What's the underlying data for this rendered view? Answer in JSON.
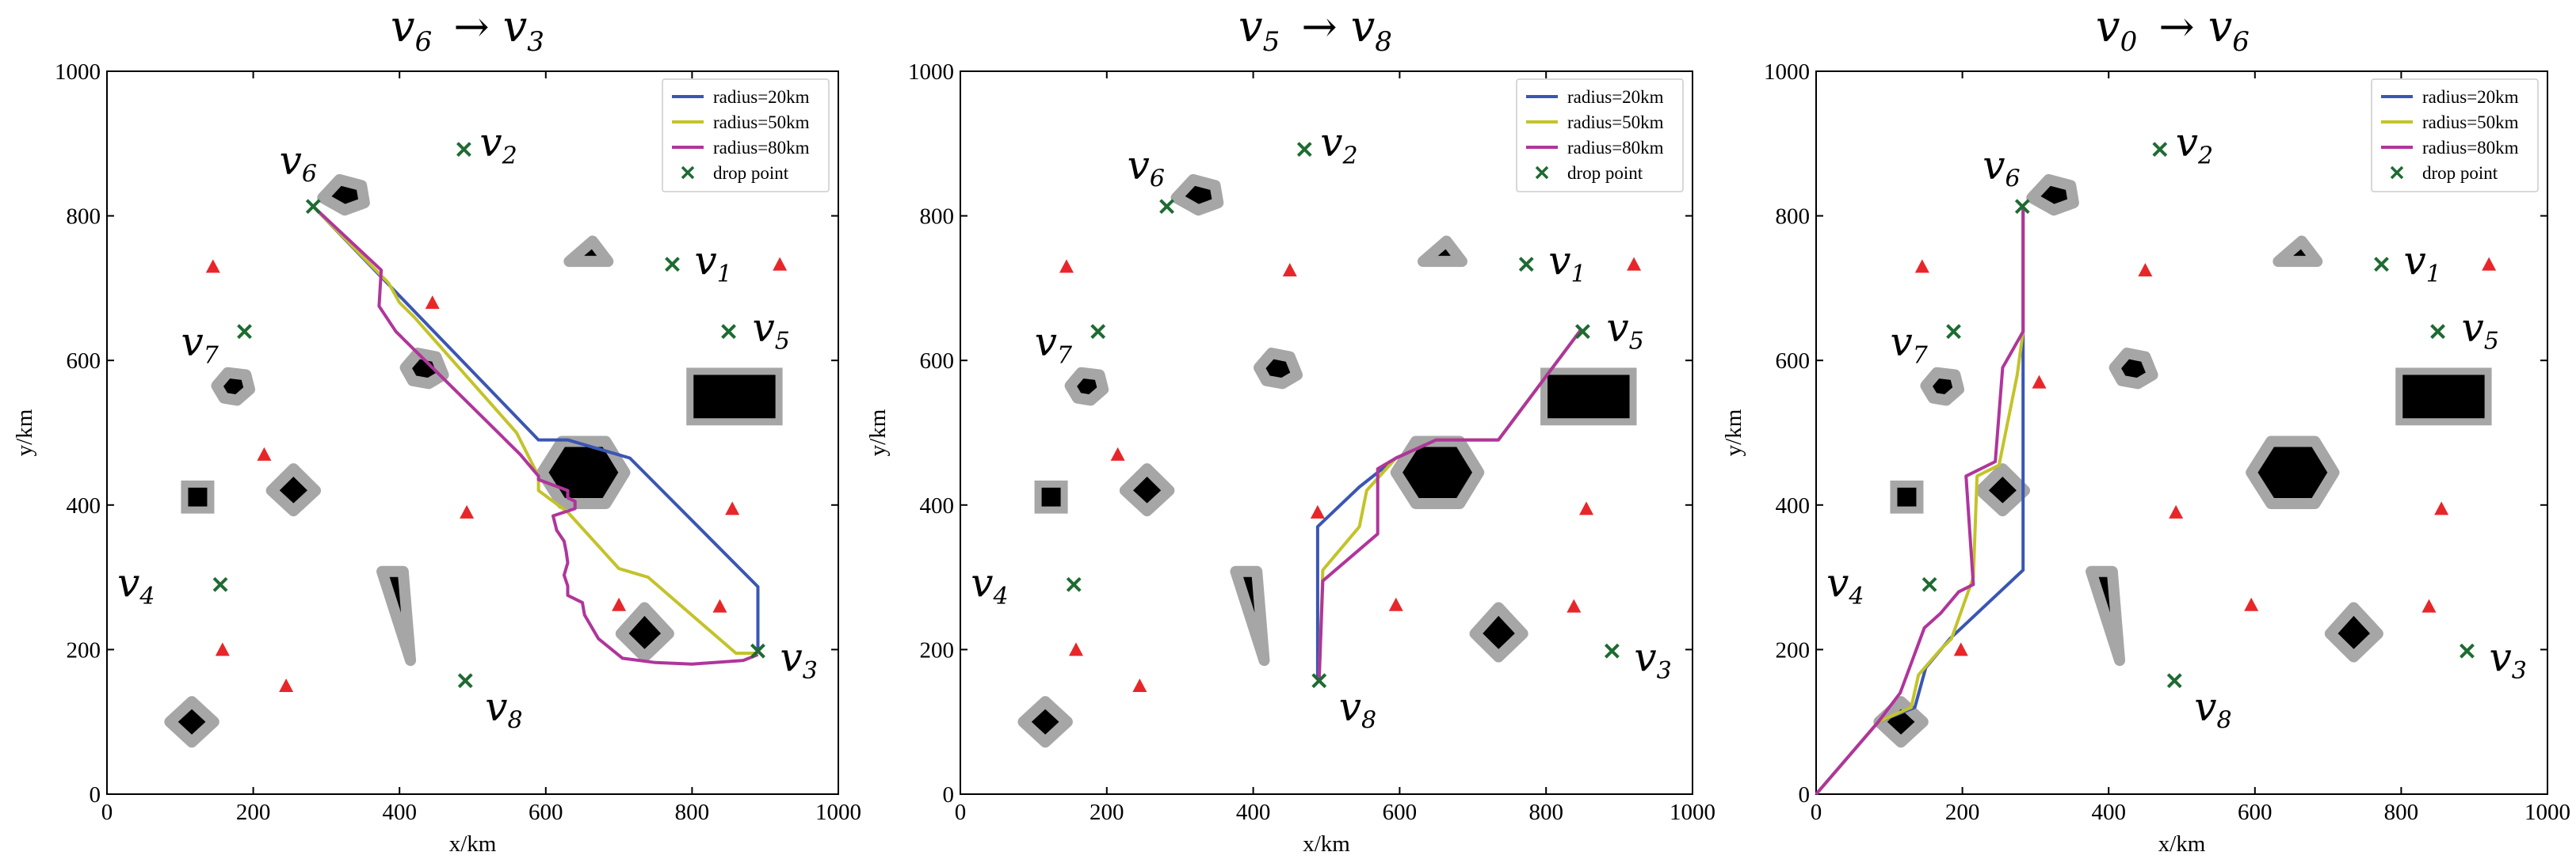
{
  "chart_data": [
    {
      "type": "line",
      "title": {
        "from": "v",
        "from_sub": "6",
        "arrow": "→",
        "to": "v",
        "to_sub": "3"
      },
      "xlabel": "x/km",
      "ylabel": "y/km",
      "xlim": [
        0,
        1000
      ],
      "ylim": [
        0,
        1000
      ],
      "xticks": [
        0,
        200,
        400,
        600,
        800,
        1000
      ],
      "yticks": [
        0,
        200,
        400,
        600,
        800,
        1000
      ],
      "legend": {
        "position": "top-right",
        "entries": [
          "radius=20km",
          "radius=50km",
          "radius=80km",
          "drop point"
        ]
      },
      "series": [
        {
          "name": "radius=20km",
          "color": "#3a56b4",
          "points": [
            [
              283,
              812
            ],
            [
              590,
              490
            ],
            [
              630,
              490
            ],
            [
              715,
              465
            ],
            [
              890,
              287
            ],
            [
              890,
              198
            ]
          ]
        },
        {
          "name": "radius=50km",
          "color": "#c3c32a",
          "points": [
            [
              283,
              812
            ],
            [
              385,
              707
            ],
            [
              400,
              680
            ],
            [
              420,
              660
            ],
            [
              560,
              500
            ],
            [
              590,
              440
            ],
            [
              590,
              420
            ],
            [
              630,
              390
            ],
            [
              700,
              312
            ],
            [
              740,
              300
            ],
            [
              860,
              195
            ],
            [
              890,
              195
            ]
          ]
        },
        {
          "name": "radius=80km",
          "color": "#b0359b",
          "points": [
            [
              283,
              812
            ],
            [
              375,
              725
            ],
            [
              372,
              675
            ],
            [
              395,
              640
            ],
            [
              565,
              470
            ],
            [
              590,
              440
            ],
            [
              590,
              435
            ],
            [
              630,
              420
            ],
            [
              630,
              410
            ],
            [
              640,
              405
            ],
            [
              640,
              395
            ],
            [
              610,
              385
            ],
            [
              615,
              365
            ],
            [
              625,
              350
            ],
            [
              628,
              335
            ],
            [
              630,
              320
            ],
            [
              625,
              303
            ],
            [
              630,
              288
            ],
            [
              630,
              275
            ],
            [
              650,
              265
            ],
            [
              653,
              248
            ],
            [
              672,
              215
            ],
            [
              705,
              188
            ],
            [
              750,
              182
            ],
            [
              800,
              180
            ],
            [
              870,
              185
            ],
            [
              890,
              193
            ]
          ]
        }
      ],
      "drop_points": [
        [
          488,
          892
        ],
        [
          773,
          733
        ],
        [
          850,
          640
        ],
        [
          890,
          198
        ],
        [
          282,
          813
        ],
        [
          188,
          640
        ],
        [
          155,
          290
        ],
        [
          490,
          157
        ]
      ],
      "threats": [
        [
          145,
          730
        ],
        [
          445,
          680
        ],
        [
          215,
          470
        ],
        [
          492,
          390
        ],
        [
          855,
          395
        ],
        [
          700,
          262
        ],
        [
          838,
          260
        ],
        [
          158,
          200
        ],
        [
          245,
          150
        ],
        [
          920,
          733
        ]
      ],
      "vertex_labels": [
        {
          "sym": "v",
          "sub": "6",
          "at": [
            290,
            820
          ]
        },
        {
          "sym": "v",
          "sub": "2",
          "at": [
            488,
            892
          ]
        },
        {
          "sym": "v",
          "sub": "1",
          "at": [
            773,
            733
          ]
        },
        {
          "sym": "v",
          "sub": "7",
          "at": [
            188,
            640
          ]
        },
        {
          "sym": "v",
          "sub": "5",
          "at": [
            850,
            640
          ]
        },
        {
          "sym": "v",
          "sub": "4",
          "at": [
            155,
            290
          ]
        },
        {
          "sym": "v",
          "sub": "3",
          "at": [
            890,
            198
          ]
        },
        {
          "sym": "v",
          "sub": "8",
          "at": [
            490,
            157
          ]
        }
      ]
    },
    {
      "type": "line",
      "title": {
        "from": "v",
        "from_sub": "5",
        "arrow": "→",
        "to": "v",
        "to_sub": "8"
      },
      "xlabel": "x/km",
      "ylabel": "y/km",
      "xlim": [
        0,
        1000
      ],
      "ylim": [
        0,
        1000
      ],
      "xticks": [
        0,
        200,
        400,
        600,
        800,
        1000
      ],
      "yticks": [
        0,
        200,
        400,
        600,
        800,
        1000
      ],
      "legend": {
        "position": "top-right",
        "entries": [
          "radius=20km",
          "radius=50km",
          "radius=80km",
          "drop point"
        ]
      },
      "series": [
        {
          "name": "radius=20km",
          "color": "#3a56b4",
          "points": [
            [
              848,
              643
            ],
            [
              735,
              490
            ],
            [
              650,
              490
            ],
            [
              595,
              465
            ],
            [
              545,
              425
            ],
            [
              488,
              370
            ],
            [
              488,
              158
            ]
          ]
        },
        {
          "name": "radius=50km",
          "color": "#c3c32a",
          "points": [
            [
              848,
              643
            ],
            [
              735,
              490
            ],
            [
              650,
              490
            ],
            [
              595,
              465
            ],
            [
              555,
              420
            ],
            [
              545,
              370
            ],
            [
              495,
              310
            ],
            [
              490,
              158
            ]
          ]
        },
        {
          "name": "radius=80km",
          "color": "#b0359b",
          "points": [
            [
              848,
              643
            ],
            [
              735,
              490
            ],
            [
              650,
              490
            ],
            [
              595,
              465
            ],
            [
              570,
              450
            ],
            [
              570,
              360
            ],
            [
              495,
              295
            ],
            [
              490,
              158
            ]
          ]
        }
      ],
      "drop_points": [
        [
          470,
          892
        ],
        [
          773,
          733
        ],
        [
          850,
          640
        ],
        [
          890,
          198
        ],
        [
          282,
          813
        ],
        [
          188,
          640
        ],
        [
          155,
          290
        ],
        [
          490,
          157
        ]
      ],
      "threats": [
        [
          145,
          730
        ],
        [
          450,
          725
        ],
        [
          215,
          470
        ],
        [
          488,
          390
        ],
        [
          855,
          395
        ],
        [
          595,
          262
        ],
        [
          838,
          260
        ],
        [
          158,
          200
        ],
        [
          245,
          150
        ],
        [
          920,
          733
        ]
      ],
      "vertex_labels": [
        {
          "sym": "v",
          "sub": "6",
          "at": [
            282,
            813
          ]
        },
        {
          "sym": "v",
          "sub": "2",
          "at": [
            470,
            892
          ]
        },
        {
          "sym": "v",
          "sub": "1",
          "at": [
            773,
            733
          ]
        },
        {
          "sym": "v",
          "sub": "7",
          "at": [
            188,
            640
          ]
        },
        {
          "sym": "v",
          "sub": "5",
          "at": [
            850,
            640
          ]
        },
        {
          "sym": "v",
          "sub": "4",
          "at": [
            155,
            290
          ]
        },
        {
          "sym": "v",
          "sub": "3",
          "at": [
            890,
            198
          ]
        },
        {
          "sym": "v",
          "sub": "8",
          "at": [
            490,
            157
          ]
        }
      ]
    },
    {
      "type": "line",
      "title": {
        "from": "v",
        "from_sub": "0",
        "arrow": "→",
        "to": "v",
        "to_sub": "6"
      },
      "xlabel": "x/km",
      "ylabel": "y/km",
      "xlim": [
        0,
        1000
      ],
      "ylim": [
        0,
        1000
      ],
      "xticks": [
        0,
        200,
        400,
        600,
        800,
        1000
      ],
      "yticks": [
        0,
        200,
        400,
        600,
        800,
        1000
      ],
      "legend": {
        "position": "top-right",
        "entries": [
          "radius=20km",
          "radius=50km",
          "radius=80km",
          "drop point"
        ]
      },
      "series": [
        {
          "name": "radius=20km",
          "color": "#3a56b4",
          "points": [
            [
              0,
              0
            ],
            [
              85,
              100
            ],
            [
              135,
              120
            ],
            [
              150,
              175
            ],
            [
              183,
              215
            ],
            [
              283,
              310
            ],
            [
              283,
              420
            ],
            [
              283,
              812
            ]
          ]
        },
        {
          "name": "radius=50km",
          "color": "#c3c32a",
          "points": [
            [
              0,
              0
            ],
            [
              85,
              100
            ],
            [
              130,
              120
            ],
            [
              140,
              165
            ],
            [
              170,
              200
            ],
            [
              185,
              215
            ],
            [
              215,
              300
            ],
            [
              220,
              440
            ],
            [
              250,
              455
            ],
            [
              275,
              580
            ],
            [
              283,
              640
            ],
            [
              283,
              812
            ]
          ]
        },
        {
          "name": "radius=80km",
          "color": "#b0359b",
          "points": [
            [
              0,
              0
            ],
            [
              85,
              100
            ],
            [
              115,
              140
            ],
            [
              148,
              230
            ],
            [
              170,
              250
            ],
            [
              195,
              280
            ],
            [
              215,
              290
            ],
            [
              205,
              440
            ],
            [
              245,
              460
            ],
            [
              255,
              590
            ],
            [
              283,
              640
            ],
            [
              283,
              812
            ]
          ]
        }
      ],
      "drop_points": [
        [
          470,
          892
        ],
        [
          773,
          733
        ],
        [
          850,
          640
        ],
        [
          890,
          198
        ],
        [
          282,
          813
        ],
        [
          188,
          640
        ],
        [
          155,
          290
        ],
        [
          490,
          157
        ]
      ],
      "threats": [
        [
          145,
          730
        ],
        [
          450,
          725
        ],
        [
          305,
          570
        ],
        [
          492,
          390
        ],
        [
          855,
          395
        ],
        [
          595,
          262
        ],
        [
          838,
          260
        ],
        [
          198,
          200
        ],
        [
          920,
          733
        ]
      ],
      "vertex_labels": [
        {
          "sym": "v",
          "sub": "6",
          "at": [
            282,
            813
          ]
        },
        {
          "sym": "v",
          "sub": "2",
          "at": [
            470,
            892
          ]
        },
        {
          "sym": "v",
          "sub": "1",
          "at": [
            773,
            733
          ]
        },
        {
          "sym": "v",
          "sub": "7",
          "at": [
            188,
            640
          ]
        },
        {
          "sym": "v",
          "sub": "5",
          "at": [
            850,
            640
          ]
        },
        {
          "sym": "v",
          "sub": "4",
          "at": [
            155,
            290
          ]
        },
        {
          "sym": "v",
          "sub": "3",
          "at": [
            890,
            198
          ]
        },
        {
          "sym": "v",
          "sub": "8",
          "at": [
            490,
            157
          ]
        }
      ]
    }
  ],
  "obstacle_colors": {
    "fill": "#000000",
    "border": "#a6a6a6"
  },
  "threat_color": "#e8262a",
  "drop_point_color": "#1e6b32"
}
